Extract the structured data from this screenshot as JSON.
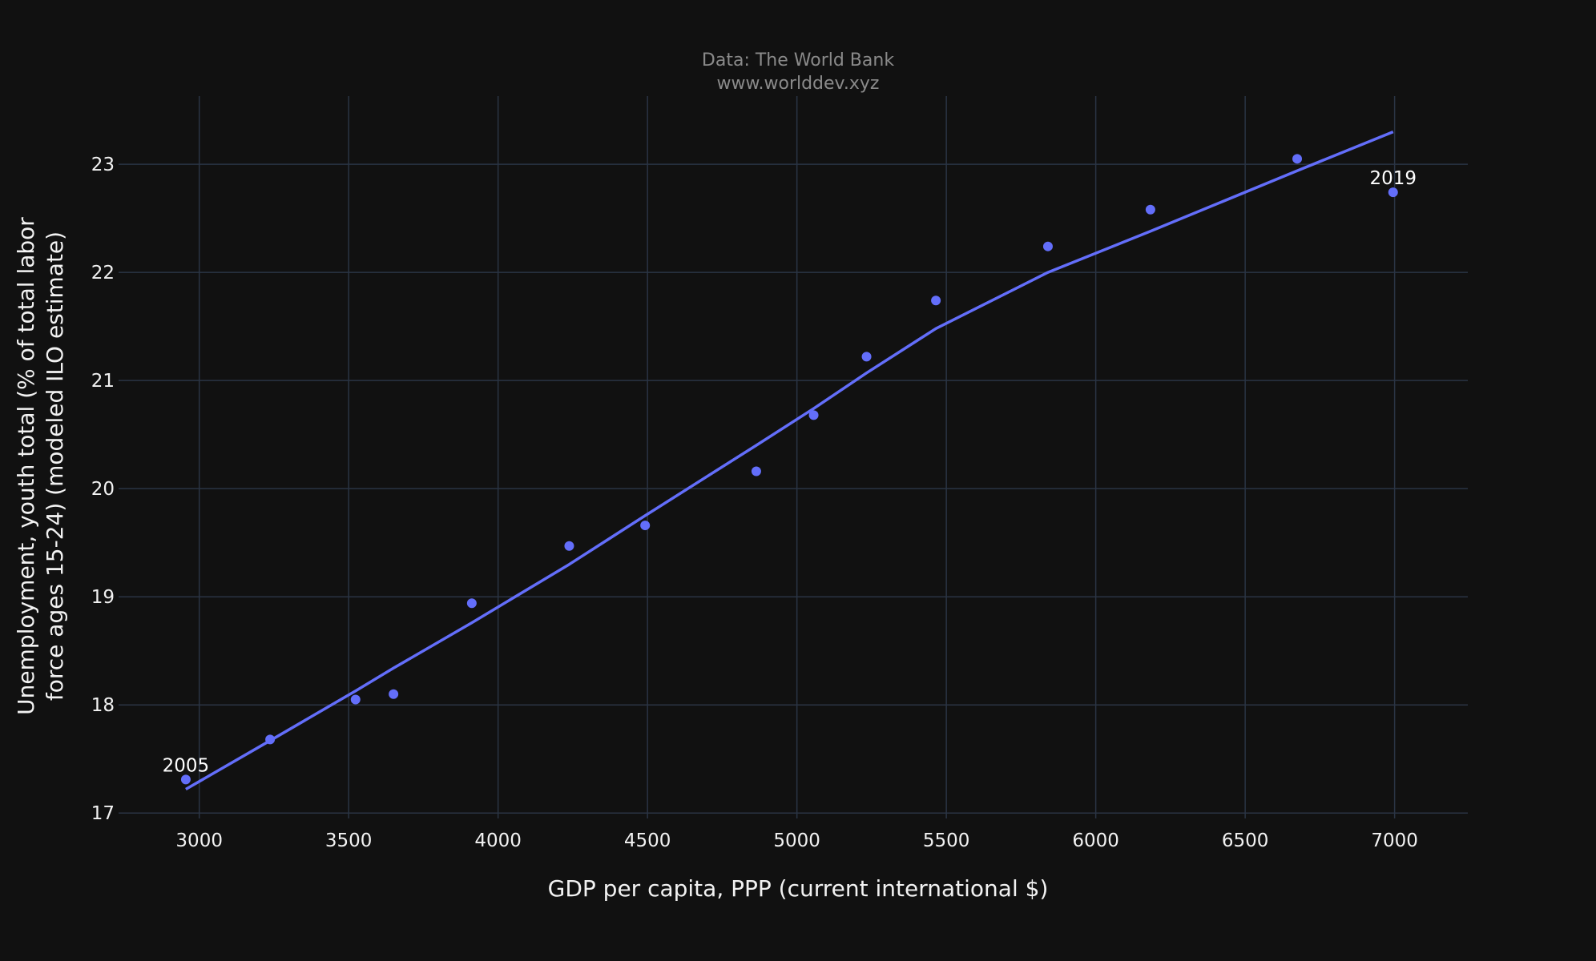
{
  "source": {
    "line1": "Data: The World Bank",
    "line2": "www.worlddev.xyz"
  },
  "colors": {
    "background": "#111111",
    "grid": "#2a3444",
    "series": "#636efa",
    "text": "#f2f2f2",
    "source_text": "#8a8a8a"
  },
  "chart_data": {
    "type": "scatter",
    "title": "",
    "xlabel": "GDP per capita, PPP (current international $)",
    "ylabel_lines": [
      "Unemployment, youth total (% of total labor",
      "force ages 15-24) (modeled ILO estimate)"
    ],
    "xlim": [
      2730,
      7245
    ],
    "ylim": [
      16.95,
      23.63
    ],
    "x_ticks": [
      3000,
      3500,
      4000,
      4500,
      5000,
      5500,
      6000,
      6500,
      7000
    ],
    "y_ticks": [
      17,
      18,
      19,
      20,
      21,
      22,
      23
    ],
    "grid": true,
    "points": [
      {
        "x": 2955,
        "y": 17.31,
        "label": "2005"
      },
      {
        "x": 3237,
        "y": 17.68,
        "label": ""
      },
      {
        "x": 3523,
        "y": 18.05,
        "label": ""
      },
      {
        "x": 3650,
        "y": 18.1,
        "label": ""
      },
      {
        "x": 3912,
        "y": 18.94,
        "label": ""
      },
      {
        "x": 4238,
        "y": 19.47,
        "label": ""
      },
      {
        "x": 4492,
        "y": 19.66,
        "label": ""
      },
      {
        "x": 4864,
        "y": 20.16,
        "label": ""
      },
      {
        "x": 5056,
        "y": 20.68,
        "label": ""
      },
      {
        "x": 5233,
        "y": 21.22,
        "label": ""
      },
      {
        "x": 5465,
        "y": 21.74,
        "label": ""
      },
      {
        "x": 5840,
        "y": 22.24,
        "label": ""
      },
      {
        "x": 6183,
        "y": 22.58,
        "label": ""
      },
      {
        "x": 6674,
        "y": 23.05,
        "label": ""
      },
      {
        "x": 6995,
        "y": 22.74,
        "label": "2019"
      }
    ],
    "trend_line": [
      {
        "x": 2955,
        "y": 17.22
      },
      {
        "x": 3237,
        "y": 17.67
      },
      {
        "x": 3523,
        "y": 18.13
      },
      {
        "x": 3650,
        "y": 18.34
      },
      {
        "x": 3912,
        "y": 18.76
      },
      {
        "x": 4238,
        "y": 19.3
      },
      {
        "x": 4492,
        "y": 19.75
      },
      {
        "x": 4864,
        "y": 20.4
      },
      {
        "x": 5056,
        "y": 20.74
      },
      {
        "x": 5233,
        "y": 21.07
      },
      {
        "x": 5465,
        "y": 21.48
      },
      {
        "x": 5840,
        "y": 22.0
      },
      {
        "x": 6183,
        "y": 22.38
      },
      {
        "x": 6674,
        "y": 22.94
      },
      {
        "x": 6995,
        "y": 23.3
      }
    ]
  }
}
